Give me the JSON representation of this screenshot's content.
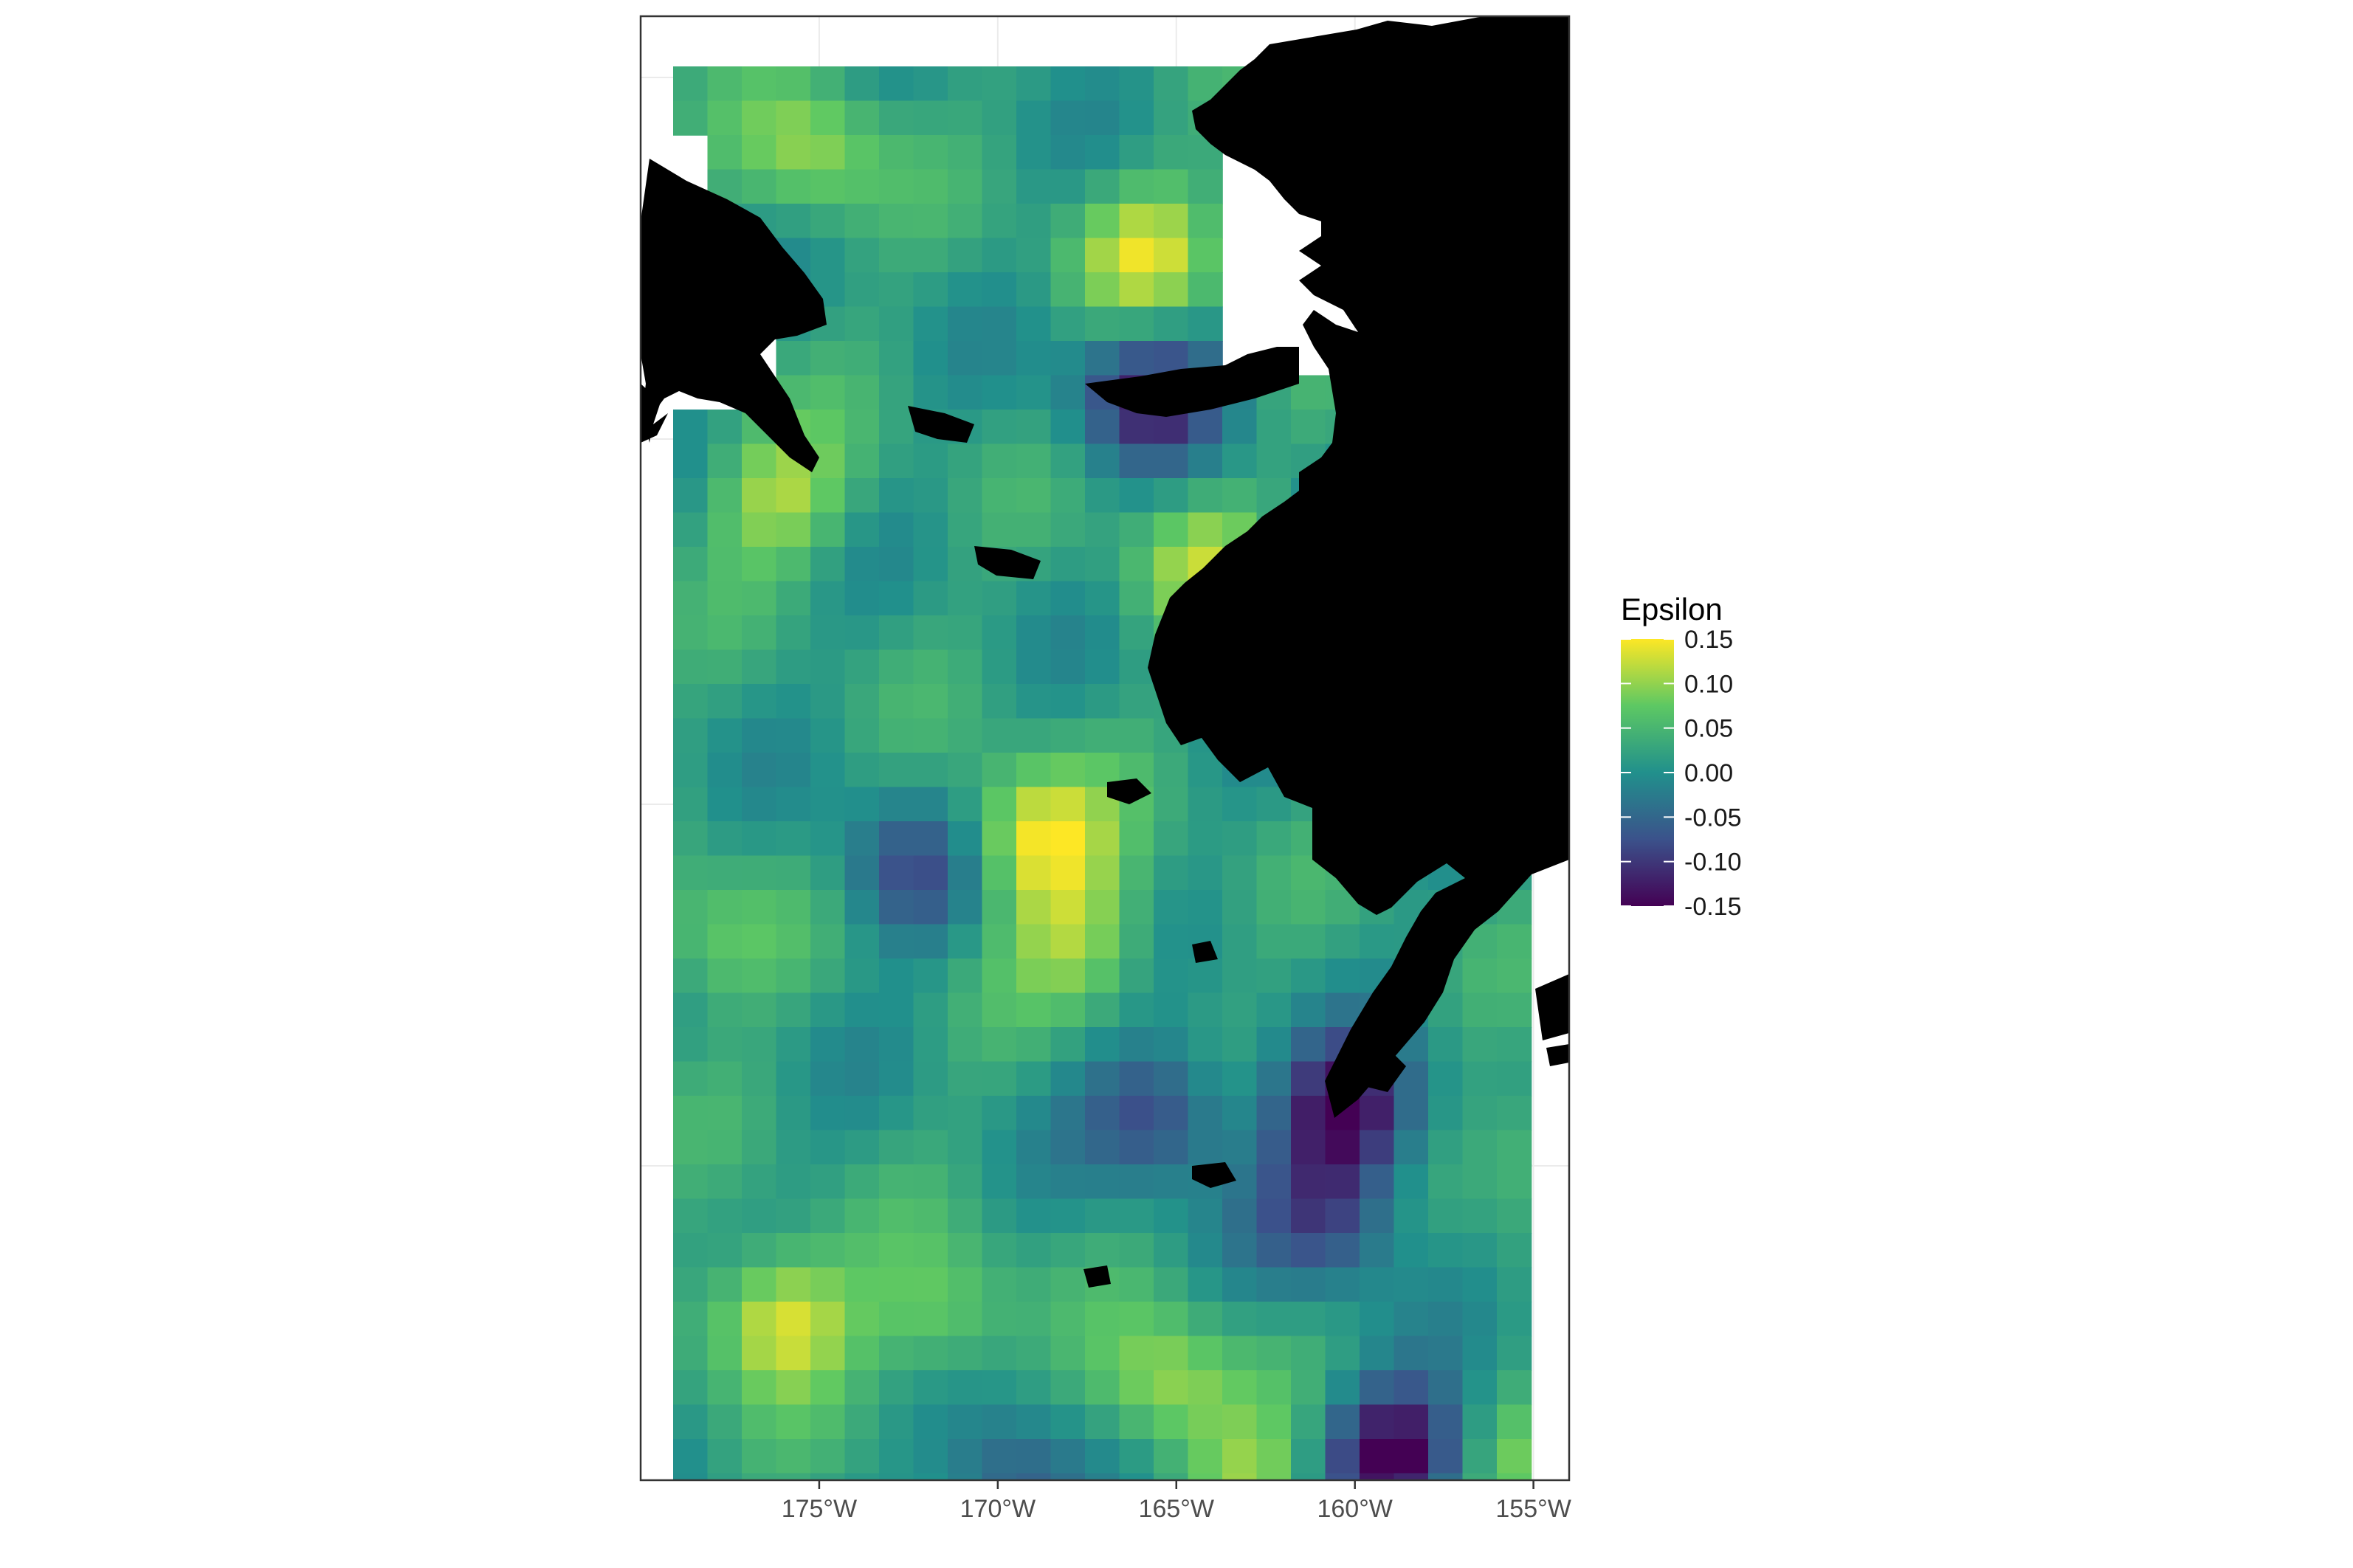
{
  "chart_data": {
    "type": "heatmap",
    "title": "",
    "xlabel": "",
    "ylabel": "",
    "x_ticks": [
      {
        "value": -175,
        "label": "175°W"
      },
      {
        "value": -170,
        "label": "170°W"
      },
      {
        "value": -165,
        "label": "165°W"
      },
      {
        "value": -160,
        "label": "160°W"
      },
      {
        "value": -155,
        "label": "155°W"
      }
    ],
    "xlim": [
      -180,
      -154
    ],
    "legend": {
      "title": "Epsilon",
      "placement": "right",
      "min": -0.15,
      "max": 0.15,
      "ticks": [
        {
          "value": 0.15,
          "label": "0.15"
        },
        {
          "value": 0.1,
          "label": "0.10"
        },
        {
          "value": 0.05,
          "label": "0.05"
        },
        {
          "value": 0.0,
          "label": "0.00"
        },
        {
          "value": -0.05,
          "label": "-0.05"
        },
        {
          "value": -0.1,
          "label": "-0.10"
        },
        {
          "value": -0.15,
          "label": "-0.15"
        }
      ],
      "palette": [
        "#440154",
        "#3b528b",
        "#21908c",
        "#5dc863",
        "#fde725"
      ]
    },
    "grid": true,
    "land_color": "#000000",
    "hotspots": [
      {
        "lon": -175.6,
        "row": 2,
        "value": 0.1
      },
      {
        "lon": -166.3,
        "row": 5,
        "value": 0.12
      },
      {
        "lon": -176.6,
        "row": 12,
        "value": 0.11
      },
      {
        "lon": -164.8,
        "row": 14,
        "value": 0.1
      },
      {
        "lon": -169.4,
        "row": 22,
        "value": 0.15
      },
      {
        "lon": -168.1,
        "row": 25,
        "value": 0.1
      },
      {
        "lon": -178.5,
        "row": 25,
        "value": 0.08
      },
      {
        "lon": -176.6,
        "row": 36,
        "value": 0.15
      },
      {
        "lon": -172.0,
        "row": 36,
        "value": 0.09
      },
      {
        "lon": -165.7,
        "row": 38,
        "value": 0.11
      },
      {
        "lon": -163.4,
        "row": 41,
        "value": 0.1
      },
      {
        "lon": -155.0,
        "row": 31,
        "value": 0.08
      },
      {
        "lon": -155.0,
        "row": 40,
        "value": 0.08
      }
    ],
    "lowspots": [
      {
        "lon": -166.3,
        "row": 9,
        "value": -0.11
      },
      {
        "lon": -173.0,
        "row": 23,
        "value": -0.07
      },
      {
        "lon": -166.0,
        "row": 30,
        "value": -0.09
      },
      {
        "lon": -160.7,
        "row": 30,
        "value": -0.14
      },
      {
        "lon": -161.2,
        "row": 33,
        "value": -0.08
      },
      {
        "lon": -159.4,
        "row": 40,
        "value": -0.16
      },
      {
        "lon": -170.0,
        "row": 41,
        "value": -0.08
      },
      {
        "lon": -160.7,
        "row": 15,
        "value": -0.1
      }
    ]
  }
}
